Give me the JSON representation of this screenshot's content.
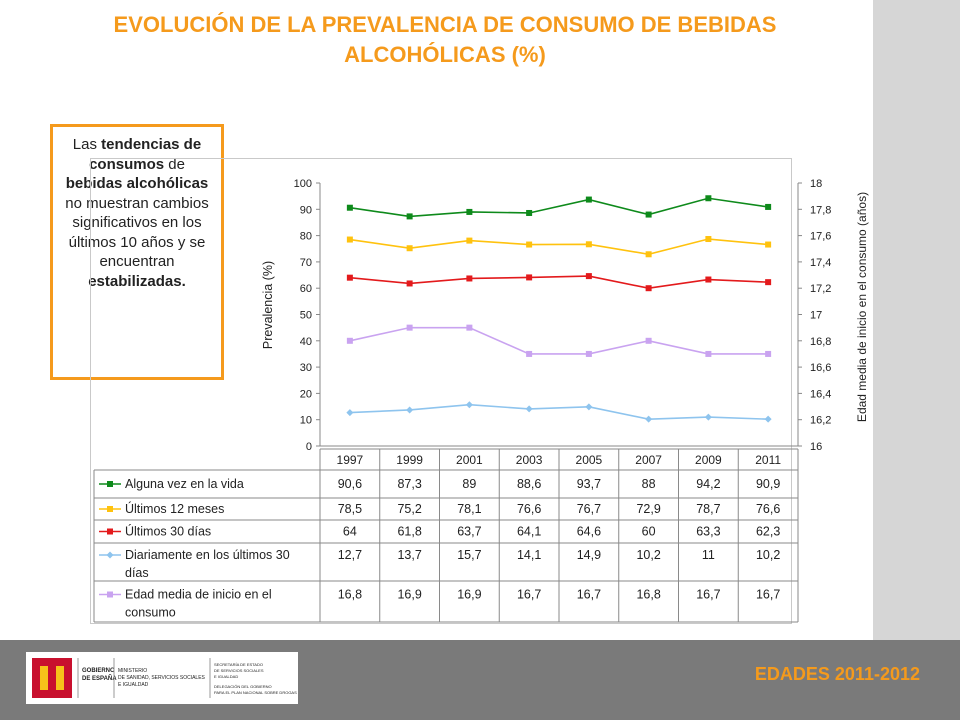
{
  "title": "EVOLUCIÓN DE LA PREVALENCIA DE CONSUMO DE BEBIDAS ALCOHÓLICAS (%)",
  "callout": {
    "p1": "Las ",
    "b1": "tendencias de consumos",
    "p2": " de ",
    "b2": "bebidas alcohólicas",
    "p3": " no muestran cambios significativos en los últimos 10 años y se encuentran ",
    "b3": "estabilizadas."
  },
  "footer": {
    "edades": "EDADES 2011-2012",
    "logo": {
      "gobierno": "GOBIERNO DE ESPAÑA",
      "ministerio": "MINISTERIO DE SANIDAD, SERVICIOS SOCIALES E IGUALDAD",
      "secretaria": "SECRETARÍA DE ESTADO DE SERVICIOS SOCIALES E IGUALDAD",
      "delegacion": "DELEGACIÓN DEL GOBIERNO PARA EL PLAN NACIONAL SOBRE DROGAS"
    }
  },
  "colors": {
    "accent": "#f59a1c",
    "footer": "#7a7a7a",
    "strip": "#d6d6d6"
  },
  "chart_data": {
    "type": "line",
    "ylabel": "Prevalencia (%)",
    "y2label": "Edad media de inicio en el consumo (años)",
    "ylim": [
      0,
      100
    ],
    "y2lim": [
      16,
      18
    ],
    "yticks": [
      0,
      10,
      20,
      30,
      40,
      50,
      60,
      70,
      80,
      90,
      100
    ],
    "y2ticks": [
      "16",
      "16,2",
      "16,4",
      "16,6",
      "16,8",
      "17",
      "17,2",
      "17,4",
      "17,6",
      "17,8",
      "18"
    ],
    "grid": false,
    "categories": [
      "1997",
      "1999",
      "2001",
      "2003",
      "2005",
      "2007",
      "2009",
      "2011"
    ],
    "series": [
      {
        "name": "Alguna vez en la vida",
        "color": "#0e8a1b",
        "marker": "square",
        "axis": "left",
        "values": [
          90.6,
          87.3,
          89,
          88.6,
          93.7,
          88,
          94.2,
          90.9
        ],
        "labels": [
          "90,6",
          "87,3",
          "89",
          "88,6",
          "93,7",
          "88",
          "94,2",
          "90,9"
        ]
      },
      {
        "name": "Últimos 12 meses",
        "color": "#ffc20e",
        "marker": "square",
        "axis": "left",
        "values": [
          78.5,
          75.2,
          78.1,
          76.6,
          76.7,
          72.9,
          78.7,
          76.6
        ],
        "labels": [
          "78,5",
          "75,2",
          "78,1",
          "76,6",
          "76,7",
          "72,9",
          "78,7",
          "76,6"
        ]
      },
      {
        "name": "Últimos 30 días",
        "color": "#e31a1c",
        "marker": "square",
        "axis": "left",
        "values": [
          64,
          61.8,
          63.7,
          64.1,
          64.6,
          60,
          63.3,
          62.3
        ],
        "labels": [
          "64",
          "61,8",
          "63,7",
          "64,1",
          "64,6",
          "60",
          "63,3",
          "62,3"
        ]
      },
      {
        "name": "Diariamente en los últimos 30 días",
        "color": "#8ec4ee",
        "marker": "diamond",
        "axis": "left",
        "values": [
          12.7,
          13.7,
          15.7,
          14.1,
          14.9,
          10.2,
          11,
          10.2
        ],
        "labels": [
          "12,7",
          "13,7",
          "15,7",
          "14,1",
          "14,9",
          "10,2",
          "11",
          "10,2"
        ]
      },
      {
        "name": "Edad media de inicio en el consumo",
        "color": "#c9a3f0",
        "marker": "square",
        "axis": "right",
        "values": [
          16.8,
          16.9,
          16.9,
          16.7,
          16.7,
          16.8,
          16.7,
          16.7
        ],
        "labels": [
          "16,8",
          "16,9",
          "16,9",
          "16,7",
          "16,7",
          "16,8",
          "16,7",
          "16,7"
        ]
      }
    ]
  }
}
